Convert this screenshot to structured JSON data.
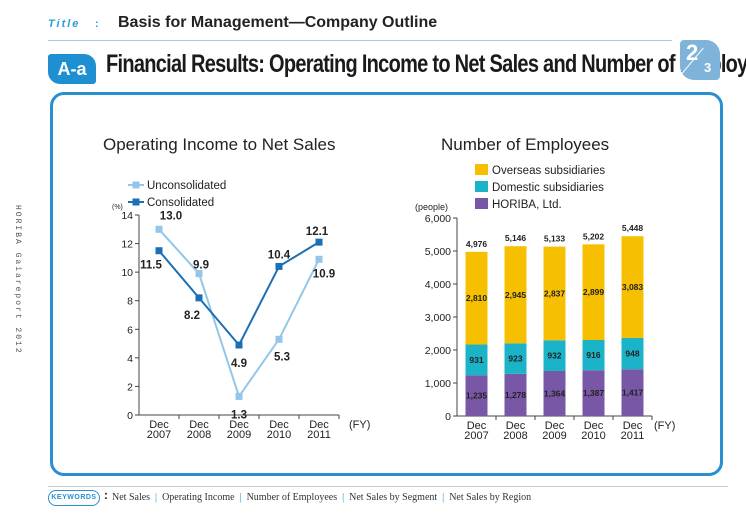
{
  "header": {
    "tag": "Title",
    "colon": ":",
    "title": "Basis for Management—Company Outline",
    "section_badge": "A-a",
    "section_title": "Financial Results: Operating Income to Net Sales and Number of Employees",
    "page_current": "2",
    "page_total": "3"
  },
  "side_text": "HORIBA Gaiareport 2012",
  "footer": {
    "badge": "KEYWORDS",
    "colon": ":",
    "keywords": [
      "Net Sales",
      "Operating Income",
      "Number of Employees",
      "Net Sales by Segment",
      "Net Sales by Region"
    ]
  },
  "colors": {
    "unconsolidated": "#93c6e8",
    "consolidated": "#1a6fb5",
    "overseas": "#f6c000",
    "domestic": "#1bb3c8",
    "horiba": "#7857a6",
    "frame": "#2a8fd0"
  },
  "chart_data": [
    {
      "type": "line",
      "title": "Operating Income to Net Sales",
      "ylabel": "(%)",
      "xunit": "(FY)",
      "ylim": [
        0,
        14
      ],
      "yticks": [
        0,
        2,
        4,
        6,
        8,
        10,
        12,
        14
      ],
      "categories": [
        "Dec 2007",
        "Dec 2008",
        "Dec 2009",
        "Dec 2010",
        "Dec 2011"
      ],
      "category_lines": [
        [
          "Dec",
          "2007"
        ],
        [
          "Dec",
          "2008"
        ],
        [
          "Dec",
          "2009"
        ],
        [
          "Dec",
          "2010"
        ],
        [
          "Dec",
          "2011"
        ]
      ],
      "legend": "top-left",
      "series": [
        {
          "name": "Unconsolidated",
          "values": [
            13.0,
            9.9,
            1.3,
            5.3,
            10.9
          ],
          "labels": [
            "13.0",
            "9.9",
            "1.3",
            "5.3",
            "10.9"
          ]
        },
        {
          "name": "Consolidated",
          "values": [
            11.5,
            8.2,
            4.9,
            10.4,
            12.1
          ],
          "labels": [
            "11.5",
            "8.2",
            "4.9",
            "10.4",
            "12.1"
          ]
        }
      ]
    },
    {
      "type": "bar",
      "stacked": true,
      "title": "Number of Employees",
      "ylabel": "(people)",
      "xunit": "(FY)",
      "ylim": [
        0,
        6000
      ],
      "yticks": [
        0,
        1000,
        2000,
        3000,
        4000,
        5000,
        6000
      ],
      "ytick_labels": [
        "0",
        "1,000",
        "2,000",
        "3,000",
        "4,000",
        "5,000",
        "6,000"
      ],
      "categories": [
        "Dec 2007",
        "Dec 2008",
        "Dec 2009",
        "Dec 2010",
        "Dec 2011"
      ],
      "category_lines": [
        [
          "Dec",
          "2007"
        ],
        [
          "Dec",
          "2008"
        ],
        [
          "Dec",
          "2009"
        ],
        [
          "Dec",
          "2010"
        ],
        [
          "Dec",
          "2011"
        ]
      ],
      "legend": "top-left",
      "series": [
        {
          "name": "HORIBA, Ltd.",
          "values": [
            1235,
            1278,
            1364,
            1387,
            1417
          ],
          "labels": [
            "1,235",
            "1,278",
            "1,364",
            "1,387",
            "1,417"
          ]
        },
        {
          "name": "Domestic subsidiaries",
          "values": [
            931,
            923,
            932,
            916,
            948
          ],
          "labels": [
            "931",
            "923",
            "932",
            "916",
            "948"
          ]
        },
        {
          "name": "Overseas subsidiaries",
          "values": [
            2810,
            2945,
            2837,
            2899,
            3083
          ],
          "labels": [
            "2,810",
            "2,945",
            "2,837",
            "2,899",
            "3,083"
          ]
        }
      ],
      "totals": [
        4976,
        5146,
        5133,
        5202,
        5448
      ],
      "total_labels": [
        "4,976",
        "5,146",
        "5,133",
        "5,202",
        "5,448"
      ]
    }
  ]
}
